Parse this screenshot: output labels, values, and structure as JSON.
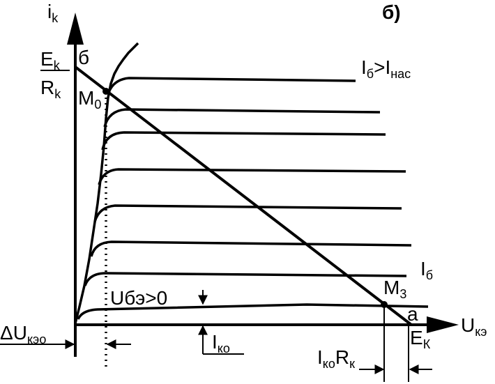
{
  "figure_label": "б)",
  "axes": {
    "y_symbol": "i",
    "y_subscript": "k",
    "x_symbol": "U",
    "x_subscript": "кэ"
  },
  "load_line": {
    "top_numerator": "E",
    "top_numerator_sub": "k",
    "top_denominator": "R",
    "top_denominator_sub": "k",
    "top_point_letter": "б",
    "bottom_point_letter": "a",
    "x_intercept": "E",
    "x_intercept_sub": "К"
  },
  "points": {
    "m0": {
      "symbol": "M",
      "subscript": "0"
    },
    "m3": {
      "symbol": "M",
      "subscript": "3"
    }
  },
  "curve_labels": {
    "saturation": {
      "left": "I",
      "left_sub": "б",
      "relation": ">",
      "right": "I",
      "right_sub": "нас"
    },
    "base": {
      "symbol": "I",
      "subscript": "б"
    },
    "cutoff": "Uбэ>0"
  },
  "annotations": {
    "delta_u": {
      "symbol": "ΔU",
      "subscript": "кэо"
    },
    "i_ko": {
      "symbol": "I",
      "subscript": "ко"
    },
    "i_ko_r_k": {
      "symbol1": "I",
      "sub1": "ко",
      "symbol2": "R",
      "sub2": "к"
    }
  },
  "colors": {
    "ink": "#000000",
    "background": "#ffffff"
  }
}
